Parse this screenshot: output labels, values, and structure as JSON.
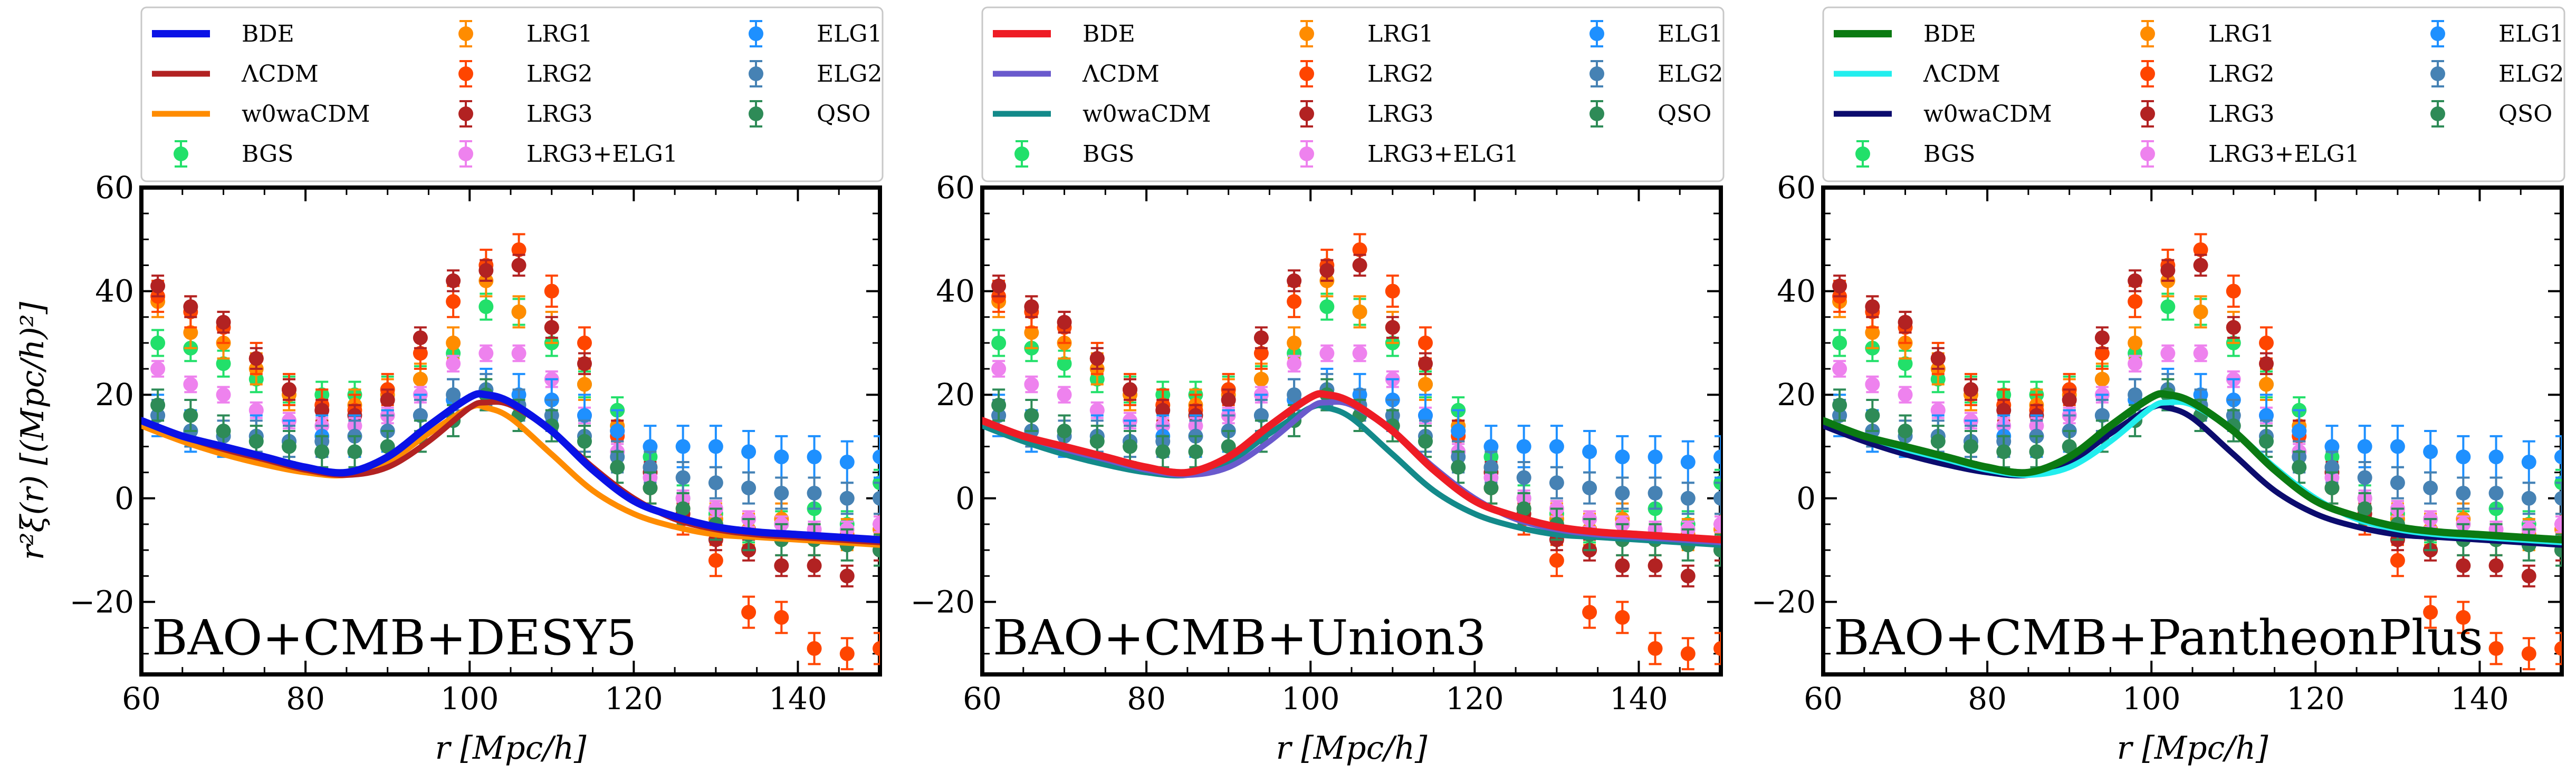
{
  "figure": {
    "y_axis_label": "r²ξ(r) [(Mpc/h)²]",
    "x_axis_label": "r [Mpc/h]"
  },
  "chart_data": [
    {
      "type": "scatter",
      "title": "",
      "annotation": "BAO+CMB+DESY5",
      "xlabel": "r [Mpc/h]",
      "ylabel": "r²ξ(r) [(Mpc/h)²]",
      "xlim": [
        60,
        150
      ],
      "ylim": [
        -34,
        60
      ],
      "xticks": [
        60,
        80,
        100,
        120,
        140
      ],
      "yticks": [
        -20,
        0,
        20,
        40,
        60
      ],
      "lines": [
        {
          "name": "BDE",
          "color": "#0a12e6",
          "width": 14,
          "model": "BDE"
        },
        {
          "name": "ΛCDM",
          "color": "#b22222",
          "width": 11,
          "model": "LCDM"
        },
        {
          "name": "w0waCDM",
          "color": "#ff8c00",
          "width": 11,
          "model": "W0WA"
        }
      ]
    },
    {
      "type": "scatter",
      "title": "",
      "annotation": "BAO+CMB+Union3",
      "xlabel": "r [Mpc/h]",
      "ylabel": "",
      "xlim": [
        60,
        150
      ],
      "ylim": [
        -34,
        60
      ],
      "xticks": [
        60,
        80,
        100,
        120,
        140
      ],
      "yticks": [
        -20,
        0,
        20,
        40,
        60
      ],
      "lines": [
        {
          "name": "BDE",
          "color": "#ee1c25",
          "width": 14,
          "model": "BDE"
        },
        {
          "name": "ΛCDM",
          "color": "#6a5acd",
          "width": 11,
          "model": "LCDM"
        },
        {
          "name": "w0waCDM",
          "color": "#138a8a",
          "width": 11,
          "model": "W0WA"
        }
      ]
    },
    {
      "type": "scatter",
      "title": "",
      "annotation": "BAO+CMB+PantheonPlus",
      "xlabel": "r [Mpc/h]",
      "ylabel": "",
      "xlim": [
        60,
        150
      ],
      "ylim": [
        -34,
        60
      ],
      "xticks": [
        60,
        80,
        100,
        120,
        140
      ],
      "yticks": [
        -20,
        0,
        20,
        40,
        60
      ],
      "lines": [
        {
          "name": "BDE",
          "color": "#0b7a12",
          "width": 14,
          "model": "BDE"
        },
        {
          "name": "ΛCDM",
          "color": "#22eeee",
          "width": 11,
          "model": "LCDM"
        },
        {
          "name": "w0waCDM",
          "color": "#0c0c6e",
          "width": 11,
          "model": "W0WA"
        }
      ]
    }
  ],
  "model_curves": {
    "r": [
      60,
      65,
      70,
      75,
      80,
      85,
      90,
      95,
      100,
      102,
      105,
      110,
      115,
      120,
      125,
      130,
      135,
      140,
      145,
      150
    ],
    "BDE": [
      15,
      12,
      10,
      8,
      6,
      5,
      8,
      14,
      19.5,
      20,
      18.5,
      13,
      5.5,
      -0.5,
      -3.5,
      -5.5,
      -6.5,
      -7,
      -7.5,
      -8
    ],
    "LCDM": [
      15,
      12,
      9.5,
      7.5,
      5.5,
      4.5,
      6,
      11,
      17.5,
      18.5,
      18,
      13,
      6,
      0,
      -4,
      -6,
      -7,
      -7.5,
      -8,
      -8.5
    ],
    "W0WA": [
      14,
      11,
      8.5,
      6.5,
      5,
      4.5,
      7,
      12.5,
      17.5,
      17.5,
      15.5,
      8.5,
      1.5,
      -3,
      -5.5,
      -7,
      -7.5,
      -8,
      -8.5,
      -9
    ]
  },
  "series": [
    {
      "name": "BGS",
      "color": "#22e06a",
      "err": 2.5,
      "x": [
        62,
        66,
        70,
        74,
        78,
        82,
        86,
        90,
        94,
        98,
        102,
        106,
        110,
        114,
        118,
        122,
        126,
        130,
        134,
        138,
        142,
        146,
        150
      ],
      "y": [
        30,
        29,
        26,
        23,
        21,
        20,
        20,
        21,
        23,
        28,
        37,
        36,
        30,
        22,
        17,
        8,
        0,
        -3,
        -6,
        -5,
        -2,
        -5,
        3
      ]
    },
    {
      "name": "LRG1",
      "color": "#ff8c00",
      "err": 3,
      "x": [
        62,
        66,
        70,
        74,
        78,
        82,
        86,
        90,
        94,
        98,
        102,
        106,
        110,
        114,
        118,
        122,
        126,
        130,
        134,
        138,
        142,
        146,
        150
      ],
      "y": [
        38,
        32,
        30,
        25,
        20,
        18,
        18,
        20,
        23,
        30,
        42,
        36,
        33,
        22,
        14,
        6,
        -2,
        -4,
        -6,
        -4,
        -8,
        -7,
        -6
      ]
    },
    {
      "name": "LRG2",
      "color": "#ff4500",
      "err": 3,
      "x": [
        62,
        66,
        70,
        74,
        78,
        82,
        86,
        90,
        94,
        98,
        102,
        106,
        110,
        114,
        118,
        122,
        126,
        130,
        134,
        138,
        142,
        146,
        150
      ],
      "y": [
        39,
        36,
        33,
        27,
        21,
        18,
        17,
        21,
        28,
        38,
        45,
        48,
        40,
        30,
        12,
        2,
        -4,
        -12,
        -22,
        -23,
        -29,
        -30,
        -29
      ]
    },
    {
      "name": "LRG3",
      "color": "#b22222",
      "err": 2,
      "x": [
        62,
        66,
        70,
        74,
        78,
        82,
        86,
        90,
        94,
        98,
        102,
        106,
        110,
        114,
        118,
        122,
        126,
        130,
        134,
        138,
        142,
        146,
        150
      ],
      "y": [
        41,
        37,
        34,
        27,
        21,
        17,
        16,
        19,
        31,
        42,
        44,
        45,
        33,
        26,
        13,
        5,
        -3,
        -8,
        -10,
        -13,
        -13,
        -15,
        -10
      ]
    },
    {
      "name": "LRG3+ELG1",
      "color": "#ee82ee",
      "err": 1.5,
      "x": [
        62,
        66,
        70,
        74,
        78,
        82,
        86,
        90,
        94,
        98,
        102,
        106,
        110,
        114,
        118,
        122,
        126,
        130,
        134,
        138,
        142,
        146,
        150
      ],
      "y": [
        25,
        22,
        20,
        17,
        15,
        14,
        14,
        16,
        20,
        26,
        28,
        28,
        23,
        16,
        9,
        4,
        0,
        -2,
        -4,
        -5,
        -6,
        -6,
        -5
      ]
    },
    {
      "name": "ELG1",
      "color": "#1e90ff",
      "err": 4,
      "x": [
        62,
        66,
        70,
        74,
        78,
        82,
        86,
        90,
        94,
        98,
        102,
        106,
        110,
        114,
        118,
        122,
        126,
        130,
        134,
        138,
        142,
        146,
        150
      ],
      "y": [
        16,
        13,
        12,
        12,
        11,
        12,
        12,
        13,
        16,
        19,
        21,
        20,
        19,
        16,
        13,
        10,
        10,
        10,
        9,
        8,
        8,
        7,
        8
      ]
    },
    {
      "name": "ELG2",
      "color": "#4682b4",
      "err": 3,
      "x": [
        62,
        66,
        70,
        74,
        78,
        82,
        86,
        90,
        94,
        98,
        102,
        106,
        110,
        114,
        118,
        122,
        126,
        130,
        134,
        138,
        142,
        146,
        150
      ],
      "y": [
        16,
        13,
        12,
        12,
        11,
        11,
        12,
        13,
        16,
        20,
        21,
        18,
        16,
        12,
        8,
        6,
        4,
        3,
        2,
        1,
        1,
        0,
        0
      ]
    },
    {
      "name": "QSO",
      "color": "#2e8b57",
      "err": 3,
      "x": [
        62,
        66,
        70,
        74,
        78,
        82,
        86,
        90,
        94,
        98,
        102,
        106,
        110,
        114,
        118,
        122,
        126,
        130,
        134,
        138,
        142,
        146,
        150
      ],
      "y": [
        18,
        16,
        13,
        11,
        10,
        9,
        9,
        10,
        12,
        15,
        20,
        16,
        14,
        11,
        6,
        2,
        -2,
        -5,
        -7,
        -8,
        -8,
        -9,
        -10
      ]
    }
  ],
  "legend_entries": {
    "line_names": [
      "BDE",
      "ΛCDM",
      "w0waCDM"
    ],
    "point_names": [
      "BGS",
      "LRG1",
      "LRG2",
      "LRG3",
      "LRG3+ELG1",
      "ELG1",
      "ELG2",
      "QSO"
    ]
  }
}
